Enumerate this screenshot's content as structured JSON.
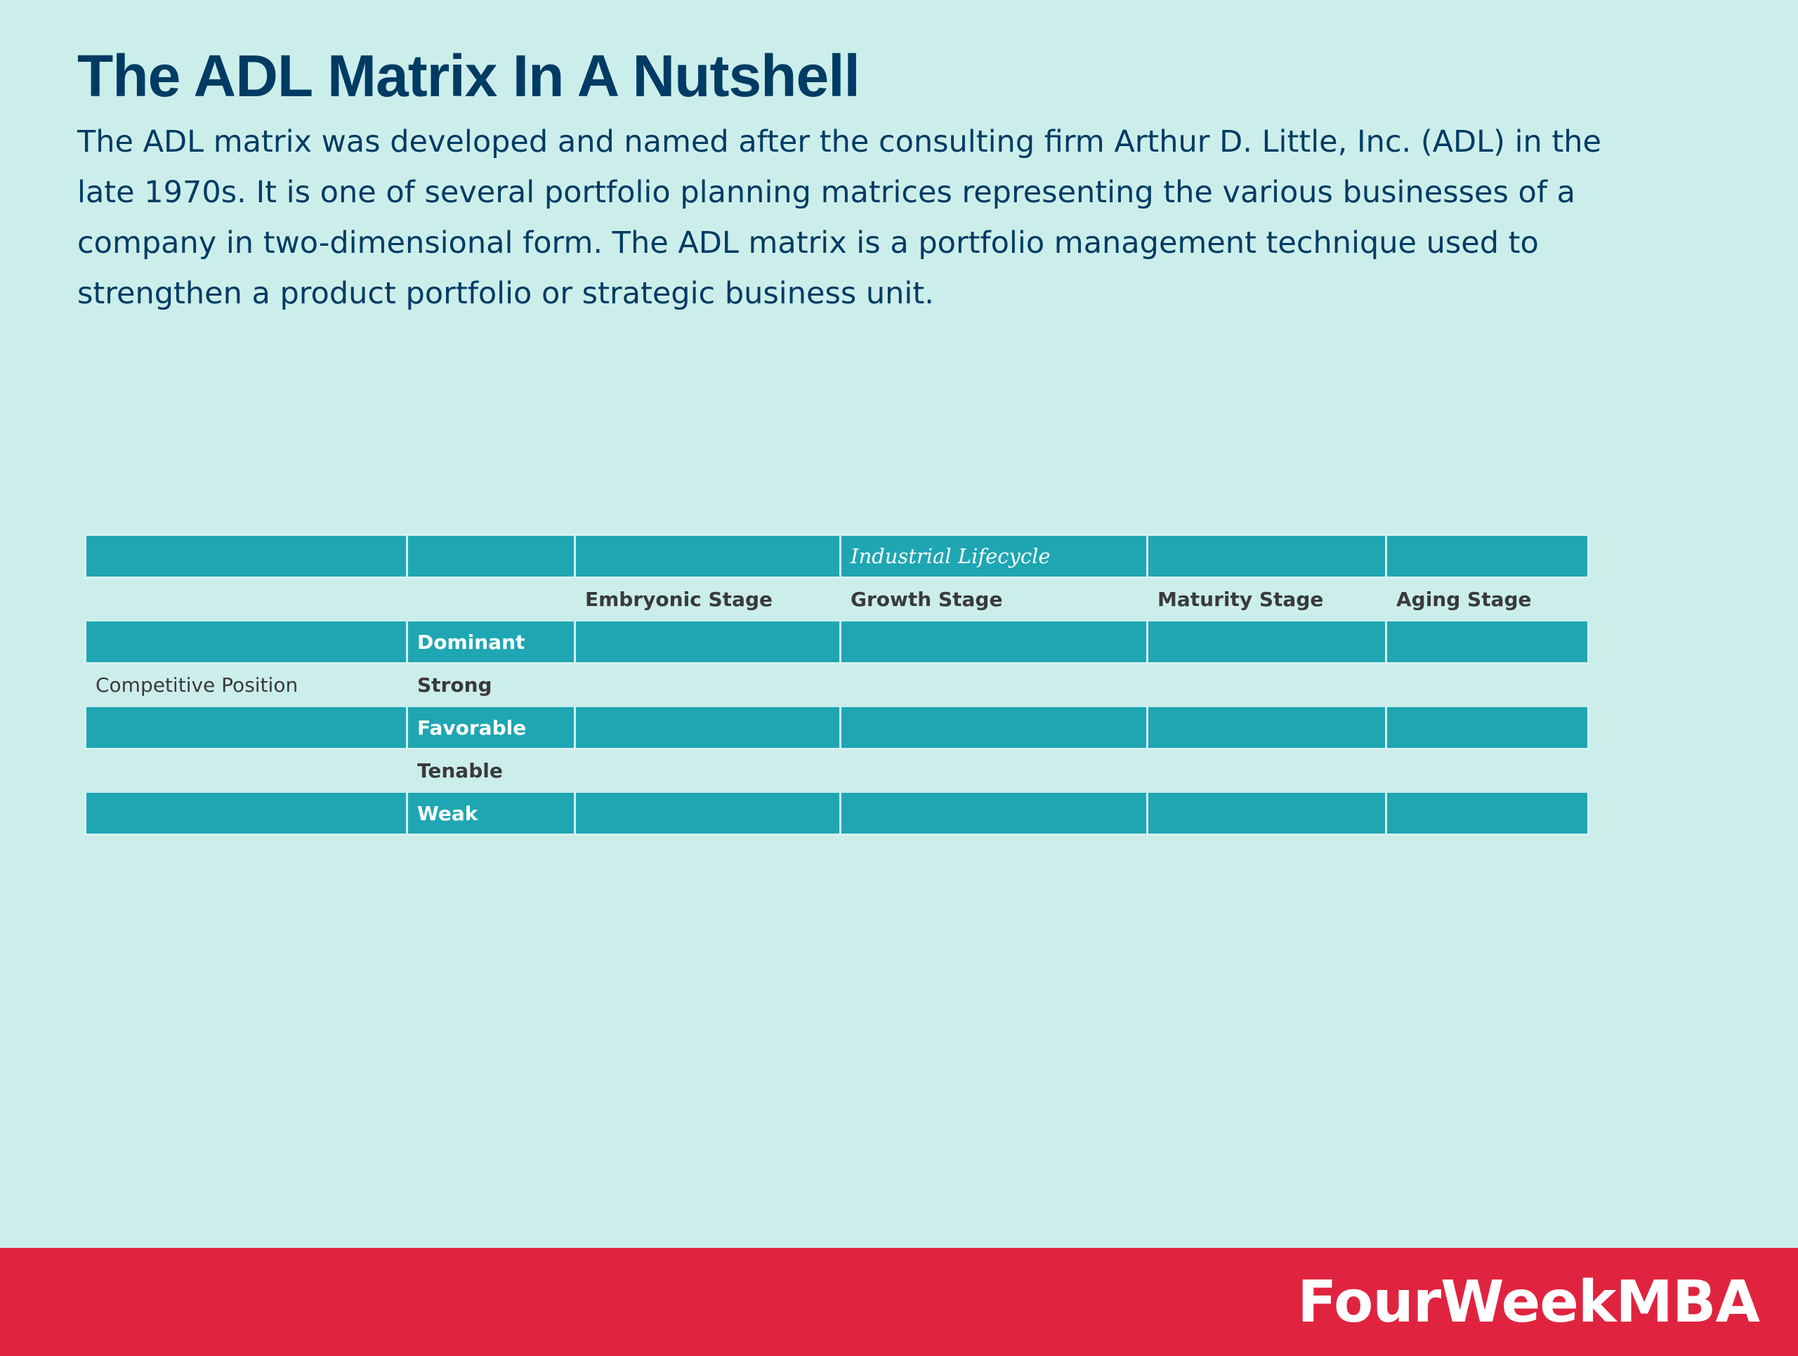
{
  "header": {
    "title": "The ADL Matrix In A Nutshell",
    "intro": "The ADL matrix was developed and named after the consulting firm Arthur D. Little, Inc. (ADL) in the late 1970s. It is one of several portfolio planning matrices representing the various businesses of a company in two-dimensional form.  The ADL matrix is a portfolio management technique used to strengthen a product portfolio or strategic business unit."
  },
  "matrix": {
    "axis_top": "Industrial Lifecycle",
    "axis_side": "Competitive Position",
    "stages": [
      "Embryonic Stage",
      "Growth Stage",
      "Maturity Stage",
      "Aging Stage"
    ],
    "positions": [
      "Dominant",
      "Strong",
      "Favorable",
      "Tenable",
      "Weak"
    ]
  },
  "footer": {
    "brand": "FourWeekMBA"
  },
  "colors": {
    "background": "#cceeeb",
    "title": "#003b63",
    "teal_row": "#1fa6b3",
    "footer": "#e0243f"
  }
}
